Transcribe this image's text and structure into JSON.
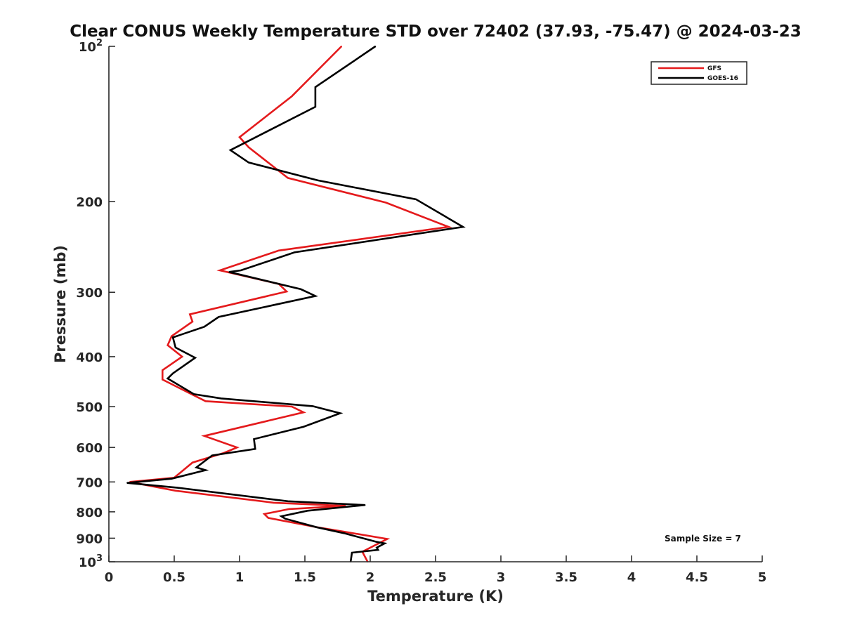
{
  "chart_data": {
    "type": "line",
    "title": "Clear CONUS Weekly Temperature STD over 72402 (37.93, -75.47) @ 2024-03-23",
    "xlabel": "Temperature (K)",
    "ylabel": "Pressure (mb)",
    "xlim": [
      0,
      5
    ],
    "ylim": [
      100,
      1000
    ],
    "y_scale": "log",
    "y_direction": "reversed",
    "grid": false,
    "legend_position": "top-right",
    "x_ticks": [
      {
        "value": 0,
        "label": "0"
      },
      {
        "value": 0.5,
        "label": "0.5"
      },
      {
        "value": 1,
        "label": "1"
      },
      {
        "value": 1.5,
        "label": "1.5"
      },
      {
        "value": 2,
        "label": "2"
      },
      {
        "value": 2.5,
        "label": "2.5"
      },
      {
        "value": 3,
        "label": "3"
      },
      {
        "value": 3.5,
        "label": "3.5"
      },
      {
        "value": 4,
        "label": "4"
      },
      {
        "value": 4.5,
        "label": "4.5"
      },
      {
        "value": 5,
        "label": "5"
      }
    ],
    "y_ticks": [
      {
        "value": 100,
        "label": "10",
        "sup": "2"
      },
      {
        "value": 200,
        "label": "200",
        "sup": ""
      },
      {
        "value": 300,
        "label": "300",
        "sup": ""
      },
      {
        "value": 400,
        "label": "400",
        "sup": ""
      },
      {
        "value": 500,
        "label": "500",
        "sup": ""
      },
      {
        "value": 600,
        "label": "600",
        "sup": ""
      },
      {
        "value": 700,
        "label": "700",
        "sup": ""
      },
      {
        "value": 800,
        "label": "800",
        "sup": ""
      },
      {
        "value": 900,
        "label": "900",
        "sup": ""
      },
      {
        "value": 1000,
        "label": "10",
        "sup": "3"
      }
    ],
    "series": [
      {
        "name": "GFS",
        "color": "#e41a1c",
        "points": [
          [
            1.78,
            100
          ],
          [
            1.4,
            125
          ],
          [
            1.0,
            150
          ],
          [
            1.07,
            157
          ],
          [
            1.37,
            180
          ],
          [
            2.12,
            201
          ],
          [
            2.6,
            224
          ],
          [
            1.3,
            249
          ],
          [
            0.85,
            272
          ],
          [
            1.3,
            289
          ],
          [
            1.36,
            299
          ],
          [
            0.62,
            331
          ],
          [
            0.64,
            342
          ],
          [
            0.48,
            365
          ],
          [
            0.45,
            380
          ],
          [
            0.56,
            400
          ],
          [
            0.41,
            425
          ],
          [
            0.41,
            443
          ],
          [
            0.74,
            488
          ],
          [
            1.4,
            500
          ],
          [
            1.49,
            513
          ],
          [
            0.73,
            570
          ],
          [
            0.98,
            600
          ],
          [
            0.88,
            615
          ],
          [
            0.64,
            642
          ],
          [
            0.5,
            687
          ],
          [
            0.16,
            700
          ],
          [
            0.51,
            728
          ],
          [
            1.26,
            768
          ],
          [
            1.81,
            779
          ],
          [
            1.38,
            790
          ],
          [
            1.19,
            808
          ],
          [
            1.22,
            822
          ],
          [
            1.58,
            856
          ],
          [
            1.82,
            876
          ],
          [
            2.13,
            903
          ],
          [
            1.94,
            956
          ],
          [
            1.98,
            1000
          ]
        ]
      },
      {
        "name": "GOES-16",
        "color": "#000000",
        "points": [
          [
            2.04,
            100
          ],
          [
            1.58,
            120
          ],
          [
            1.58,
            131
          ],
          [
            0.93,
            159
          ],
          [
            1.07,
            168
          ],
          [
            1.6,
            182
          ],
          [
            2.35,
            198
          ],
          [
            2.71,
            224
          ],
          [
            1.42,
            251
          ],
          [
            1.01,
            272
          ],
          [
            0.92,
            274
          ],
          [
            1.47,
            296
          ],
          [
            1.58,
            305
          ],
          [
            0.84,
            335
          ],
          [
            0.73,
            350
          ],
          [
            0.49,
            367
          ],
          [
            0.51,
            384
          ],
          [
            0.66,
            402
          ],
          [
            0.49,
            431
          ],
          [
            0.45,
            441
          ],
          [
            0.65,
            473
          ],
          [
            0.86,
            482
          ],
          [
            1.56,
            499
          ],
          [
            1.77,
            515
          ],
          [
            1.49,
            547
          ],
          [
            1.11,
            578
          ],
          [
            1.12,
            604
          ],
          [
            0.79,
            622
          ],
          [
            0.67,
            656
          ],
          [
            0.74,
            664
          ],
          [
            0.48,
            690
          ],
          [
            0.14,
            703
          ],
          [
            0.52,
            718
          ],
          [
            1.37,
            763
          ],
          [
            1.96,
            776
          ],
          [
            1.52,
            796
          ],
          [
            1.32,
            816
          ],
          [
            1.35,
            825
          ],
          [
            1.59,
            857
          ],
          [
            1.8,
            880
          ],
          [
            1.97,
            904
          ],
          [
            2.05,
            915
          ],
          [
            2.11,
            921
          ],
          [
            2.05,
            939
          ],
          [
            2.06,
            948
          ],
          [
            1.86,
            960
          ],
          [
            1.85,
            1000
          ]
        ]
      }
    ],
    "annotations": [
      "Sample Size = 7"
    ]
  }
}
